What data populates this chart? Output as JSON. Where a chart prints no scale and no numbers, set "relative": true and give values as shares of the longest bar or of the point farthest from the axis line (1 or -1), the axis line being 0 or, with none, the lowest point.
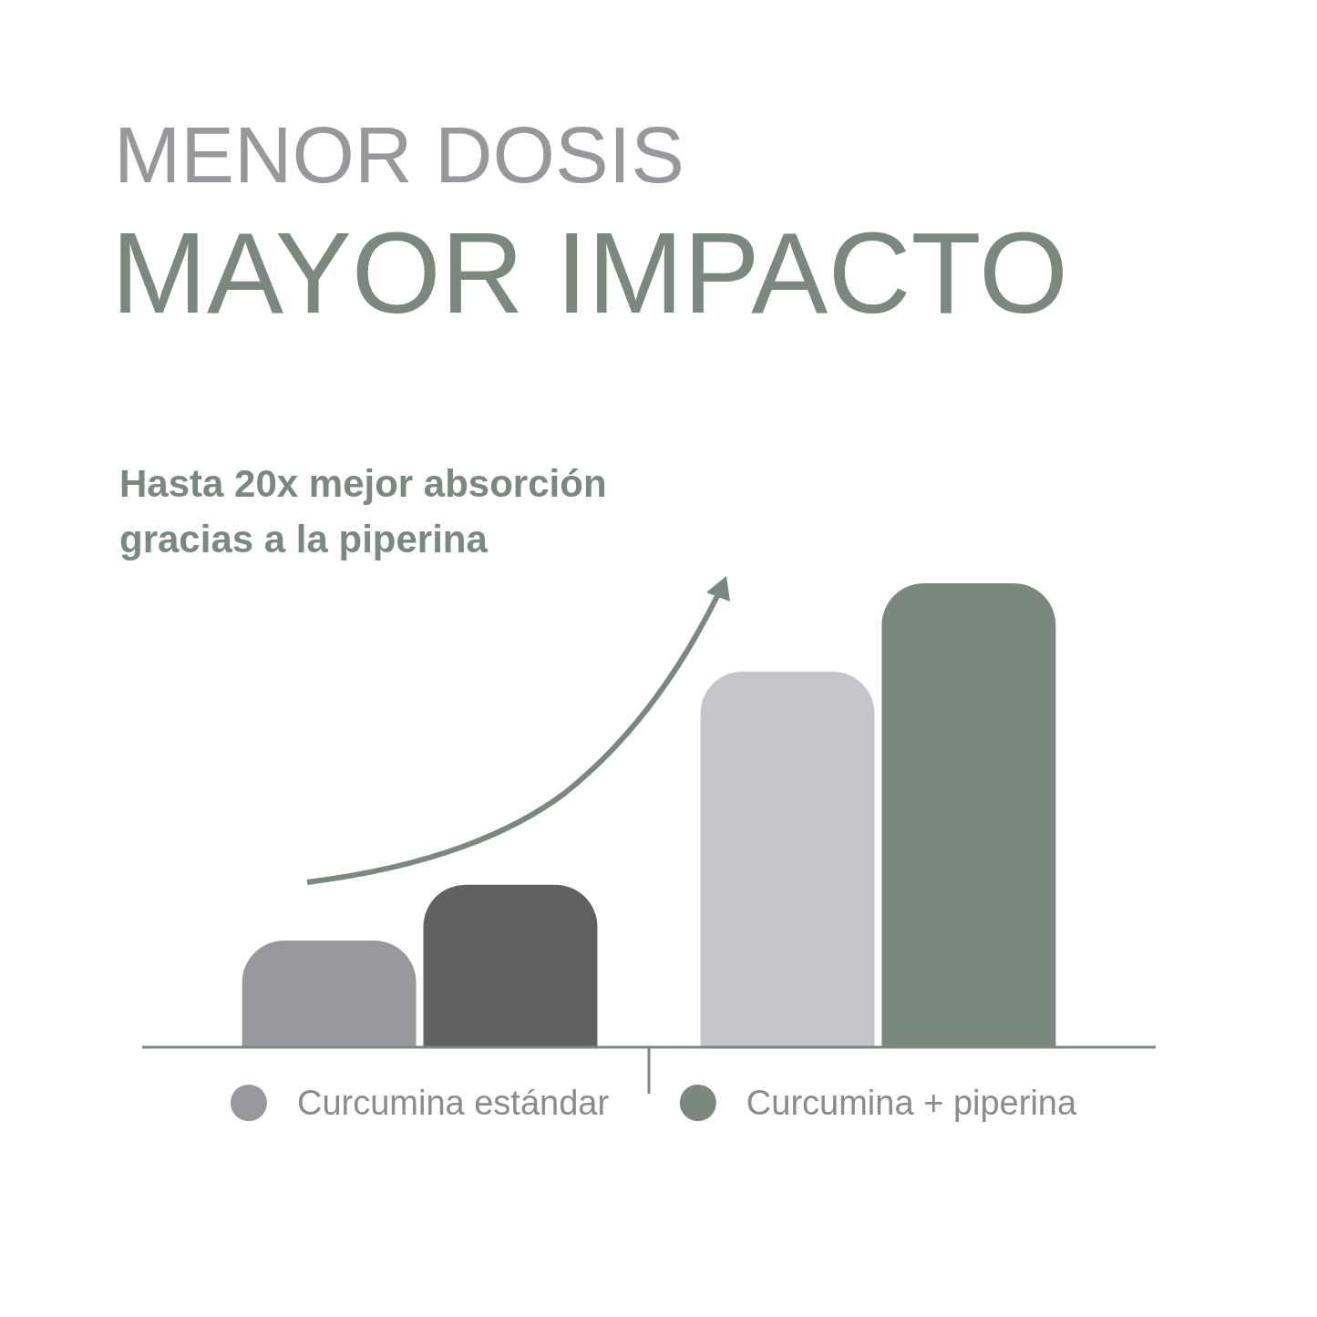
{
  "chart_data": {
    "type": "bar",
    "title": "MENOR DOSIS",
    "subtitle": "MAYOR IMPACTO",
    "annotations": [
      "Hasta 20x mejor absorción gracias a la piperina"
    ],
    "categories": [
      "Curcumina estándar",
      "Curcumina + piperina"
    ],
    "relative": true,
    "series": [
      {
        "colors": [
          "#97989c",
          "#c4c5ca"
        ],
        "values": [
          0.23,
          0.81
        ]
      },
      {
        "colors": [
          "#616161",
          "#7a8880"
        ],
        "values": [
          0.35,
          1
        ]
      }
    ]
  }
}
